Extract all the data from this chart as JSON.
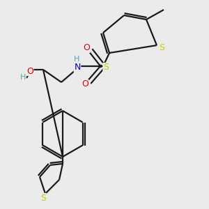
{
  "bg_color": "#ebebeb",
  "bond_color": "#1a1a1a",
  "atom_colors": {
    "S": "#cccc00",
    "N": "#0000cc",
    "O": "#dd0000",
    "H_N": "#4da6a6",
    "H_O": "#4da6a6"
  },
  "figsize": [
    3.0,
    3.0
  ],
  "dpi": 100,
  "lw": 1.6,
  "double_sep": 3.0,
  "font_size": 9
}
